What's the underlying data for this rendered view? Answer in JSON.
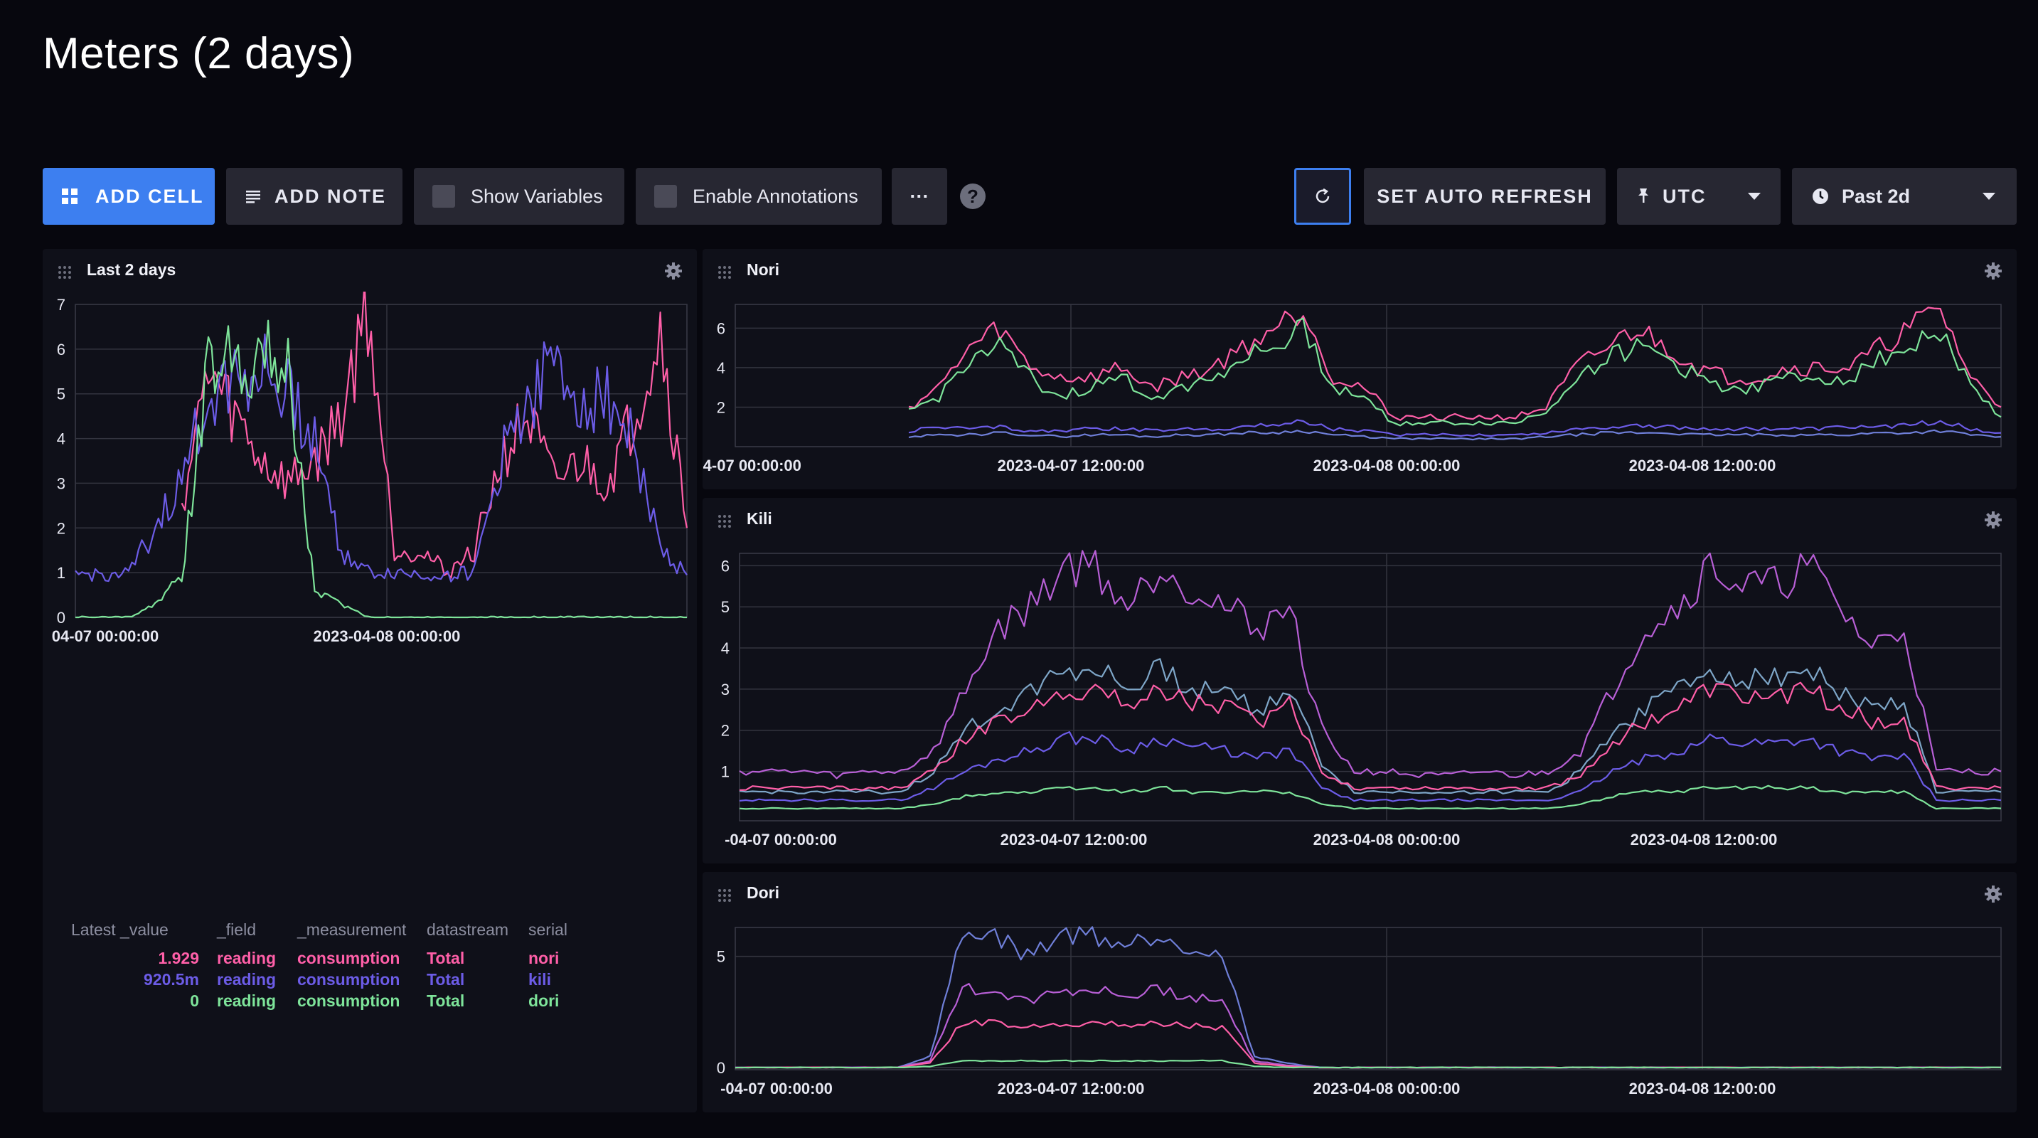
{
  "page": {
    "title": "Meters (2 days)"
  },
  "toolbar": {
    "add_cell": "ADD CELL",
    "add_note": "ADD NOTE",
    "show_variables": "Show Variables",
    "enable_annotations": "Enable Annotations",
    "more": "···",
    "help": "?",
    "set_auto_refresh": "SET AUTO REFRESH",
    "timezone": "UTC",
    "time_range": "Past 2d"
  },
  "colors": {
    "nori": "#ff5fa8",
    "kili": "#6c5ce7",
    "dori": "#7ee49a",
    "accent": "#3d7ff0"
  },
  "cells": {
    "last2days": {
      "name": "Last 2 days",
      "xticks": [
        "04-07 00:00:00",
        "2023-04-08 00:00:00"
      ],
      "legend": {
        "headers": [
          "Latest _value",
          "_field",
          "_measurement",
          "datastream",
          "serial"
        ],
        "rows": [
          {
            "value": "1.929",
            "field": "reading",
            "measurement": "consumption",
            "datastream": "Total",
            "serial": "nori"
          },
          {
            "value": "920.5m",
            "field": "reading",
            "measurement": "consumption",
            "datastream": "Total",
            "serial": "kili"
          },
          {
            "value": "0",
            "field": "reading",
            "measurement": "consumption",
            "datastream": "Total",
            "serial": "dori"
          }
        ]
      }
    },
    "nori": {
      "name": "Nori",
      "xticks": [
        "-04-07 00:00:00",
        "2023-04-07 12:00:00",
        "2023-04-08 00:00:00",
        "2023-04-08 12:00:00"
      ]
    },
    "kili": {
      "name": "Kili",
      "xticks": [
        "-04-07 00:00:00",
        "2023-04-07 12:00:00",
        "2023-04-08 00:00:00",
        "2023-04-08 12:00:00"
      ]
    },
    "dori": {
      "name": "Dori",
      "xticks": [
        "-04-07 00:00:00",
        "2023-04-07 12:00:00",
        "2023-04-08 00:00:00",
        "2023-04-08 12:00:00"
      ]
    }
  },
  "chart_data": [
    {
      "type": "line",
      "title": "Last 2 days",
      "ylim": [
        0,
        7
      ],
      "yticks": [
        "0",
        "1",
        "2",
        "3",
        "4",
        "5",
        "6",
        "7"
      ],
      "x_ticks": [
        "04-07 00:00:00",
        "2023-04-08 00:00:00"
      ],
      "x_range": [
        "2023-04-06 23:00",
        "2023-04-08 23:00"
      ],
      "series": [
        {
          "name": "nori",
          "color": "#ff5fa8",
          "x": [
            "04-07 00:00",
            "04-07 02:00",
            "04-07 04:00",
            "04-07 06:00",
            "04-07 08:00",
            "04-07 10:00",
            "04-07 12:00",
            "04-07 14:00",
            "04-07 16:00",
            "04-07 18:00",
            "04-07 20:00",
            "04-07 22:00",
            "04-08 00:00",
            "04-08 02:00",
            "04-08 04:00",
            "04-08 06:00",
            "04-08 08:00",
            "04-08 10:00",
            "04-08 12:00",
            "04-08 14:00",
            "04-08 16:00",
            "04-08 18:00",
            "04-08 20:00",
            "04-08 22:00"
          ],
          "values": [
            null,
            null,
            null,
            null,
            2.5,
            5.5,
            4.5,
            3.5,
            3.0,
            3.5,
            4.5,
            7.0,
            1.5,
            1.5,
            1.0,
            1.5,
            3.5,
            4.5,
            3.0,
            3.5,
            3.0,
            4.5,
            6.5,
            2.0
          ]
        },
        {
          "name": "kili",
          "color": "#6c5ce7",
          "x": [
            "04-07 00:00",
            "04-07 02:00",
            "04-07 04:00",
            "04-07 06:00",
            "04-07 08:00",
            "04-07 10:00",
            "04-07 12:00",
            "04-07 14:00",
            "04-07 16:00",
            "04-07 18:00",
            "04-07 20:00",
            "04-07 22:00",
            "04-08 00:00",
            "04-08 02:00",
            "04-08 04:00",
            "04-08 06:00",
            "04-08 08:00",
            "04-08 10:00",
            "04-08 12:00",
            "04-08 14:00",
            "04-08 16:00",
            "04-08 18:00",
            "04-08 20:00",
            "04-08 22:00"
          ],
          "values": [
            0.95,
            0.95,
            0.95,
            2.0,
            3.0,
            5.0,
            5.5,
            5.5,
            5.0,
            4.0,
            1.5,
            1.0,
            1.0,
            0.95,
            0.95,
            1.0,
            3.5,
            5.0,
            5.5,
            5.0,
            5.0,
            4.0,
            1.5,
            0.95
          ]
        },
        {
          "name": "dori",
          "color": "#7ee49a",
          "x": [
            "04-07 00:00",
            "04-07 02:00",
            "04-07 04:00",
            "04-07 06:00",
            "04-07 08:00",
            "04-07 10:00",
            "04-07 12:00",
            "04-07 14:00",
            "04-07 16:00",
            "04-07 18:00",
            "04-07 20:00",
            "04-07 22:00",
            "04-08 00:00",
            "04-08 02:00",
            "04-08 04:00",
            "04-08 06:00",
            "04-08 08:00",
            "04-08 10:00",
            "04-08 12:00",
            "04-08 14:00",
            "04-08 16:00",
            "04-08 18:00",
            "04-08 20:00",
            "04-08 22:00"
          ],
          "values": [
            0,
            0,
            0,
            0.3,
            0.9,
            5.5,
            6.0,
            5.8,
            5.6,
            0.6,
            0.3,
            0,
            0,
            0,
            0,
            0,
            0,
            0,
            0,
            0,
            0,
            0,
            0,
            0
          ]
        }
      ]
    },
    {
      "type": "line",
      "title": "Nori",
      "ylim": [
        0,
        7.2
      ],
      "yticks": [
        "2",
        "4",
        "6"
      ],
      "x_ticks": [
        "-04-07 00:00:00",
        "2023-04-07 12:00:00",
        "2023-04-08 00:00:00",
        "2023-04-08 12:00:00"
      ],
      "series": [
        {
          "name": "pink",
          "color": "#ff5fa8",
          "values": [
            2,
            3,
            5,
            6,
            4,
            3.5,
            3.5,
            4,
            3,
            3.5,
            4,
            5,
            6,
            7,
            3.5,
            3,
            1.5,
            1.5,
            1.5,
            1.5,
            1.5,
            2,
            4,
            5,
            6,
            5,
            4,
            3.5,
            3.5,
            4,
            4,
            4,
            5,
            6,
            7,
            3.5,
            2
          ]
        },
        {
          "name": "green",
          "color": "#7ee49a",
          "values": [
            1.8,
            2.5,
            4.5,
            5,
            3.5,
            2.5,
            3,
            3.5,
            2.5,
            3,
            3.5,
            4.5,
            5,
            6,
            3,
            2.5,
            1.2,
            1.2,
            1.2,
            1.2,
            1.2,
            1.8,
            3.5,
            4.5,
            5,
            4.5,
            3.5,
            3,
            3,
            3.5,
            3.5,
            3.5,
            4.5,
            5,
            6,
            3,
            1.5
          ]
        },
        {
          "name": "purple",
          "color": "#6c5ce7",
          "values": [
            0.8,
            1,
            0.9,
            1,
            0.8,
            0.8,
            0.9,
            0.9,
            0.8,
            0.9,
            0.9,
            1,
            1.1,
            1.3,
            0.9,
            0.8,
            0.6,
            0.6,
            0.6,
            0.6,
            0.6,
            0.7,
            0.9,
            1,
            1.1,
            1,
            0.9,
            0.9,
            0.9,
            0.9,
            0.9,
            1,
            1,
            1.1,
            1.3,
            0.9,
            0.7
          ]
        },
        {
          "name": "blue",
          "color": "#6f7fd8",
          "values": [
            0.5,
            0.6,
            0.6,
            0.7,
            0.6,
            0.5,
            0.6,
            0.6,
            0.5,
            0.6,
            0.6,
            0.7,
            0.7,
            0.8,
            0.6,
            0.5,
            0.4,
            0.4,
            0.4,
            0.4,
            0.4,
            0.5,
            0.6,
            0.7,
            0.7,
            0.7,
            0.6,
            0.6,
            0.6,
            0.6,
            0.6,
            0.6,
            0.7,
            0.7,
            0.8,
            0.6,
            0.5
          ]
        }
      ]
    },
    {
      "type": "line",
      "title": "Kili",
      "ylim": [
        -0.2,
        6.3
      ],
      "yticks": [
        "1",
        "2",
        "3",
        "4",
        "5",
        "6"
      ],
      "x_ticks": [
        "-04-07 00:00:00",
        "2023-04-07 12:00:00",
        "2023-04-08 00:00:00",
        "2023-04-08 12:00:00"
      ],
      "series": [
        {
          "name": "magenta",
          "color": "#b85fd6",
          "values": [
            1,
            1,
            1,
            0.9,
            1,
            1,
            1.5,
            3,
            4.5,
            5,
            6,
            6,
            5,
            6,
            5.5,
            5,
            4.5,
            5,
            2,
            1,
            1,
            0.9,
            0.9,
            1,
            0.9,
            1,
            1.5,
            3,
            4.5,
            5,
            6,
            5.5,
            5.5,
            6,
            5,
            4,
            4.5,
            1,
            1,
            1
          ]
        },
        {
          "name": "teal",
          "color": "#7ea6c8",
          "values": [
            0.5,
            0.5,
            0.5,
            0.5,
            0.5,
            0.5,
            1,
            2,
            2.5,
            3,
            3.5,
            3.5,
            3,
            3.5,
            3,
            3,
            2.5,
            3,
            1.2,
            0.5,
            0.5,
            0.5,
            0.5,
            0.5,
            0.5,
            0.5,
            1,
            2,
            2.5,
            3,
            3.5,
            3.3,
            3.3,
            3.5,
            3,
            2.5,
            2.7,
            0.5,
            0.5,
            0.5
          ]
        },
        {
          "name": "pink",
          "color": "#ff5fa8",
          "values": [
            0.6,
            0.6,
            0.6,
            0.6,
            0.6,
            0.6,
            1,
            1.8,
            2.2,
            2.5,
            3,
            3,
            2.6,
            3,
            2.7,
            2.6,
            2.2,
            2.6,
            1,
            0.6,
            0.6,
            0.6,
            0.6,
            0.6,
            0.6,
            0.6,
            0.9,
            1.7,
            2.2,
            2.5,
            3,
            2.8,
            2.8,
            3,
            2.6,
            2.2,
            2.3,
            0.6,
            0.6,
            0.6
          ]
        },
        {
          "name": "purple",
          "color": "#6c5ce7",
          "values": [
            0.3,
            0.3,
            0.3,
            0.3,
            0.3,
            0.3,
            0.6,
            1,
            1.3,
            1.5,
            1.8,
            1.8,
            1.5,
            1.8,
            1.6,
            1.5,
            1.3,
            1.5,
            0.6,
            0.3,
            0.3,
            0.3,
            0.3,
            0.3,
            0.3,
            0.3,
            0.5,
            1,
            1.3,
            1.5,
            1.8,
            1.7,
            1.7,
            1.8,
            1.5,
            1.3,
            1.4,
            0.3,
            0.3,
            0.3
          ]
        },
        {
          "name": "green",
          "color": "#7ee49a",
          "values": [
            0.1,
            0.1,
            0.1,
            0.1,
            0.1,
            0.1,
            0.2,
            0.4,
            0.5,
            0.5,
            0.6,
            0.6,
            0.5,
            0.6,
            0.5,
            0.5,
            0.5,
            0.5,
            0.2,
            0.1,
            0.1,
            0.1,
            0.1,
            0.1,
            0.1,
            0.1,
            0.2,
            0.4,
            0.5,
            0.5,
            0.6,
            0.6,
            0.6,
            0.6,
            0.5,
            0.5,
            0.5,
            0.1,
            0.1,
            0.1
          ]
        }
      ]
    },
    {
      "type": "line",
      "title": "Dori",
      "ylim": [
        -0.1,
        6.3
      ],
      "yticks": [
        "0",
        "5"
      ],
      "x_ticks": [
        "-04-07 00:00:00",
        "2023-04-07 12:00:00",
        "2023-04-08 00:00:00",
        "2023-04-08 12:00:00"
      ],
      "series": [
        {
          "name": "blue",
          "color": "#6f7fd8",
          "values": [
            0,
            0,
            0,
            0,
            0,
            0,
            0.5,
            6,
            6,
            5,
            6,
            6,
            5.5,
            6,
            5.5,
            5,
            0.5,
            0.2,
            0,
            0,
            0,
            0,
            0,
            0,
            0,
            0,
            0,
            0,
            0,
            0,
            0,
            0,
            0,
            0,
            0,
            0,
            0,
            0,
            0,
            0
          ]
        },
        {
          "name": "magenta",
          "color": "#b85fd6",
          "values": [
            0,
            0,
            0,
            0,
            0,
            0,
            0.3,
            3.5,
            3.5,
            3,
            3.5,
            3.5,
            3.2,
            3.5,
            3.2,
            3,
            0.3,
            0.1,
            0,
            0,
            0,
            0,
            0,
            0,
            0,
            0,
            0,
            0,
            0,
            0,
            0,
            0,
            0,
            0,
            0,
            0,
            0,
            0,
            0,
            0
          ]
        },
        {
          "name": "pink",
          "color": "#ff5fa8",
          "values": [
            0,
            0,
            0,
            0,
            0,
            0,
            0.2,
            2,
            2,
            1.8,
            2,
            2,
            1.9,
            2,
            1.9,
            1.8,
            0.2,
            0.05,
            0,
            0,
            0,
            0,
            0,
            0,
            0,
            0,
            0,
            0,
            0,
            0,
            0,
            0,
            0,
            0,
            0,
            0,
            0,
            0,
            0,
            0
          ]
        },
        {
          "name": "green",
          "color": "#7ee49a",
          "values": [
            0,
            0,
            0,
            0,
            0,
            0,
            0.05,
            0.3,
            0.3,
            0.3,
            0.3,
            0.3,
            0.3,
            0.3,
            0.3,
            0.3,
            0.05,
            0,
            0,
            0,
            0,
            0,
            0,
            0,
            0,
            0,
            0,
            0,
            0,
            0,
            0,
            0,
            0,
            0,
            0,
            0,
            0,
            0,
            0,
            0
          ]
        }
      ]
    }
  ]
}
